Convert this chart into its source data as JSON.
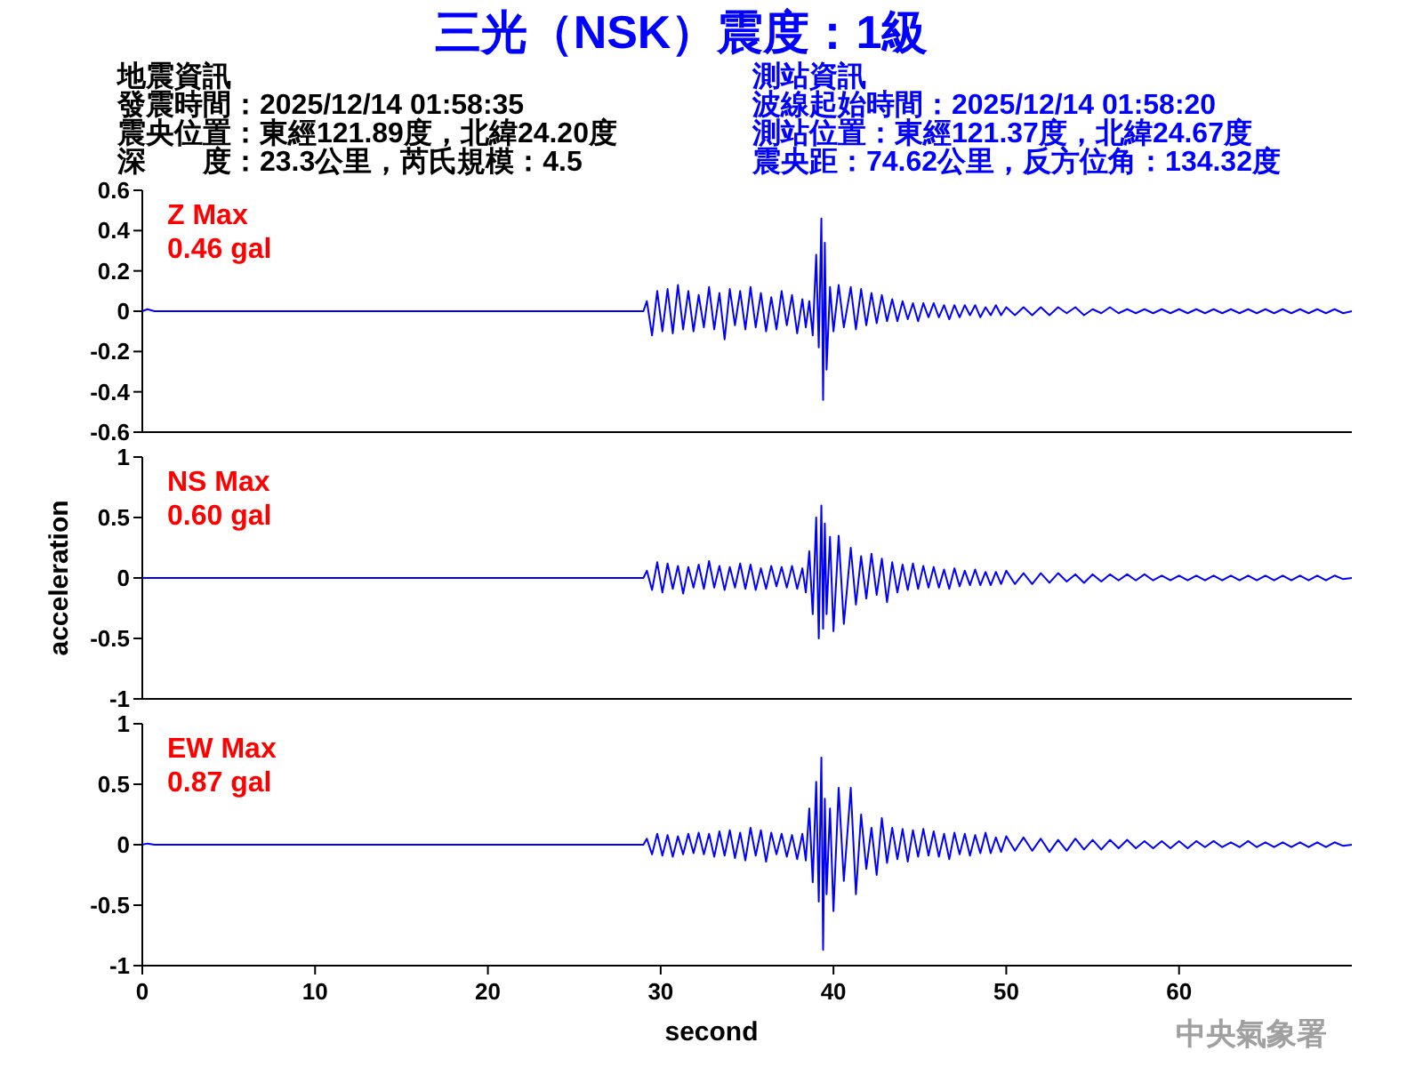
{
  "chart_data": [
    {
      "type": "line",
      "title": "三光（NSK）震度：1級",
      "annotations": [
        "地震資訊",
        "發震時間：2025/12/14 01:58:35",
        "震央位置：東經121.89度，北緯24.20度",
        "深　　度：23.3公里，芮氏規模：4.5",
        "測站資訊",
        "波線起始時間：2025/12/14 01:58:20",
        "測站位置：東經121.37度，北緯24.67度",
        "震央距：74.62公里，反方位角：134.32度",
        "Z Max",
        "0.46 gal"
      ],
      "x": [
        0,
        0.3,
        0.7,
        29.0,
        29.2,
        29.5,
        29.8,
        30.1,
        30.4,
        30.7,
        31.0,
        31.3,
        31.6,
        31.9,
        32.2,
        32.5,
        32.8,
        33.1,
        33.4,
        33.7,
        34.0,
        34.3,
        34.6,
        34.9,
        35.2,
        35.5,
        35.8,
        36.1,
        36.4,
        36.7,
        37.0,
        37.3,
        37.6,
        37.9,
        38.2,
        38.4,
        38.6,
        38.8,
        39.0,
        39.15,
        39.3,
        39.4,
        39.5,
        39.6,
        39.8,
        40.0,
        40.3,
        40.6,
        41.0,
        41.3,
        41.6,
        41.9,
        42.2,
        42.5,
        42.8,
        43.1,
        43.4,
        43.7,
        44.0,
        44.3,
        44.6,
        44.9,
        45.2,
        45.5,
        45.8,
        46.1,
        46.4,
        46.7,
        47.0,
        47.3,
        47.6,
        47.9,
        48.2,
        48.5,
        48.8,
        49.1,
        49.4,
        49.7,
        50.0,
        50.5,
        51.0,
        51.5,
        52.0,
        52.5,
        53.0,
        53.5,
        54.0,
        54.5,
        55.0,
        55.5,
        56.0,
        56.5,
        57.0,
        57.5,
        58.0,
        58.5,
        59.0,
        59.5,
        60.0,
        60.5,
        61.0,
        61.5,
        62.0,
        62.5,
        63.0,
        63.5,
        64.0,
        64.5,
        65.0,
        65.5,
        66.0,
        66.5,
        67.0,
        67.5,
        68.0,
        68.5,
        69.0,
        69.5,
        70
      ],
      "values": [
        0,
        0.01,
        0,
        0,
        0.05,
        -0.12,
        0.1,
        -0.1,
        0.11,
        -0.11,
        0.13,
        -0.09,
        0.1,
        -0.1,
        0.08,
        -0.08,
        0.12,
        -0.09,
        0.09,
        -0.14,
        0.11,
        -0.07,
        0.1,
        -0.09,
        0.12,
        -0.08,
        0.09,
        -0.1,
        0.07,
        -0.09,
        0.1,
        -0.07,
        0.08,
        -0.11,
        0.06,
        -0.08,
        0.05,
        -0.12,
        0.28,
        -0.18,
        0.46,
        -0.44,
        0.34,
        -0.29,
        0.12,
        -0.1,
        0.13,
        -0.08,
        0.12,
        -0.09,
        0.11,
        -0.07,
        0.09,
        -0.06,
        0.08,
        -0.05,
        0.06,
        -0.05,
        0.05,
        -0.04,
        0.04,
        -0.05,
        0.04,
        -0.03,
        0.04,
        -0.03,
        0.03,
        -0.04,
        0.03,
        -0.03,
        0.03,
        -0.02,
        0.03,
        -0.03,
        0.02,
        -0.02,
        0.03,
        -0.02,
        0.02,
        -0.02,
        0.02,
        -0.02,
        0.02,
        -0.02,
        0.02,
        -0.01,
        0.02,
        -0.02,
        0.01,
        -0.01,
        0.02,
        -0.01,
        0.01,
        -0.01,
        0.01,
        -0.01,
        0.01,
        -0.01,
        0.01,
        -0.01,
        0.01,
        -0.01,
        0.01,
        -0.01,
        0.01,
        -0.01,
        0.01,
        -0.01,
        0.01,
        -0.01,
        0.01,
        -0.01,
        0.01,
        -0.01,
        0.01,
        -0.01,
        0.01,
        -0.01,
        0
      ],
      "color": "#0000ff",
      "xlim": [
        0,
        70
      ],
      "ylim": [
        -0.6,
        0.6
      ],
      "yticks": [
        -0.6,
        -0.4,
        -0.2,
        0,
        0.2,
        0.4,
        0.6
      ],
      "tick_labels": "y"
    },
    {
      "type": "line",
      "ylabel": "acceleration",
      "annotations": [
        "NS Max",
        "0.60 gal"
      ],
      "x": [
        0,
        0.3,
        0.7,
        29.0,
        29.2,
        29.5,
        29.8,
        30.1,
        30.4,
        30.7,
        31.0,
        31.3,
        31.6,
        31.9,
        32.2,
        32.5,
        32.8,
        33.1,
        33.4,
        33.7,
        34.0,
        34.3,
        34.6,
        34.9,
        35.2,
        35.5,
        35.8,
        36.1,
        36.4,
        36.7,
        37.0,
        37.3,
        37.6,
        37.9,
        38.2,
        38.4,
        38.6,
        38.8,
        39.0,
        39.15,
        39.3,
        39.4,
        39.5,
        39.6,
        39.8,
        40.0,
        40.3,
        40.6,
        41.0,
        41.3,
        41.6,
        41.9,
        42.2,
        42.5,
        42.8,
        43.1,
        43.4,
        43.7,
        44.0,
        44.3,
        44.6,
        44.9,
        45.2,
        45.5,
        45.8,
        46.1,
        46.4,
        46.7,
        47.0,
        47.3,
        47.6,
        47.9,
        48.2,
        48.5,
        48.8,
        49.1,
        49.4,
        49.7,
        50.0,
        50.5,
        51.0,
        51.5,
        52.0,
        52.5,
        53.0,
        53.5,
        54.0,
        54.5,
        55.0,
        55.5,
        56.0,
        56.5,
        57.0,
        57.5,
        58.0,
        58.5,
        59.0,
        59.5,
        60.0,
        60.5,
        61.0,
        61.5,
        62.0,
        62.5,
        63.0,
        63.5,
        64.0,
        64.5,
        65.0,
        65.5,
        66.0,
        66.5,
        67.0,
        67.5,
        68.0,
        68.5,
        69.0,
        69.5,
        70
      ],
      "values": [
        0,
        0,
        0,
        0,
        0.06,
        -0.1,
        0.13,
        -0.12,
        0.12,
        -0.09,
        0.1,
        -0.13,
        0.09,
        -0.08,
        0.11,
        -0.09,
        0.14,
        -0.08,
        0.1,
        -0.1,
        0.09,
        -0.08,
        0.12,
        -0.09,
        0.11,
        -0.1,
        0.08,
        -0.09,
        0.1,
        -0.07,
        0.09,
        -0.08,
        0.1,
        -0.09,
        0.08,
        -0.12,
        0.22,
        -0.3,
        0.5,
        -0.5,
        0.6,
        -0.42,
        0.45,
        -0.3,
        0.34,
        -0.44,
        0.35,
        -0.38,
        0.25,
        -0.22,
        0.18,
        -0.17,
        0.2,
        -0.14,
        0.16,
        -0.2,
        0.13,
        -0.12,
        0.11,
        -0.1,
        0.12,
        -0.09,
        0.1,
        -0.08,
        0.09,
        -0.08,
        0.07,
        -0.09,
        0.08,
        -0.07,
        0.06,
        -0.06,
        0.07,
        -0.06,
        0.05,
        -0.06,
        0.05,
        -0.05,
        0.06,
        -0.05,
        0.04,
        -0.05,
        0.04,
        -0.04,
        0.04,
        -0.03,
        0.03,
        -0.04,
        0.03,
        -0.03,
        0.03,
        -0.02,
        0.03,
        -0.02,
        0.03,
        -0.02,
        0.02,
        -0.02,
        0.02,
        -0.02,
        0.02,
        -0.02,
        0.02,
        -0.02,
        0.02,
        -0.02,
        0.02,
        -0.02,
        0.02,
        -0.02,
        0.02,
        -0.02,
        0.02,
        -0.02,
        0.02,
        -0.02,
        0.02,
        -0.01,
        0
      ],
      "color": "#0000ff",
      "xlim": [
        0,
        70
      ],
      "ylim": [
        -1,
        1
      ],
      "yticks": [
        -1,
        -0.5,
        0,
        0.5,
        1
      ],
      "tick_labels": "y"
    },
    {
      "type": "line",
      "xlabel": "second",
      "annotations": [
        "EW Max",
        "0.87 gal",
        "中央氣象署"
      ],
      "x": [
        0,
        0.3,
        0.7,
        29.0,
        29.2,
        29.5,
        29.8,
        30.1,
        30.4,
        30.7,
        31.0,
        31.3,
        31.6,
        31.9,
        32.2,
        32.5,
        32.8,
        33.1,
        33.4,
        33.7,
        34.0,
        34.3,
        34.6,
        34.9,
        35.2,
        35.5,
        35.8,
        36.1,
        36.4,
        36.7,
        37.0,
        37.3,
        37.6,
        37.9,
        38.2,
        38.4,
        38.6,
        38.8,
        39.0,
        39.15,
        39.3,
        39.4,
        39.5,
        39.6,
        39.8,
        40.0,
        40.3,
        40.6,
        41.0,
        41.3,
        41.6,
        41.9,
        42.2,
        42.5,
        42.8,
        43.1,
        43.4,
        43.7,
        44.0,
        44.3,
        44.6,
        44.9,
        45.2,
        45.5,
        45.8,
        46.1,
        46.4,
        46.7,
        47.0,
        47.3,
        47.6,
        47.9,
        48.2,
        48.5,
        48.8,
        49.1,
        49.4,
        49.7,
        50.0,
        50.5,
        51.0,
        51.5,
        52.0,
        52.5,
        53.0,
        53.5,
        54.0,
        54.5,
        55.0,
        55.5,
        56.0,
        56.5,
        57.0,
        57.5,
        58.0,
        58.5,
        59.0,
        59.5,
        60.0,
        60.5,
        61.0,
        61.5,
        62.0,
        62.5,
        63.0,
        63.5,
        64.0,
        64.5,
        65.0,
        65.5,
        66.0,
        66.5,
        67.0,
        67.5,
        68.0,
        68.5,
        69.0,
        69.5,
        70
      ],
      "values": [
        0,
        0.01,
        0,
        0,
        0.05,
        -0.08,
        0.09,
        -0.09,
        0.08,
        -0.1,
        0.07,
        -0.08,
        0.09,
        -0.07,
        0.1,
        -0.08,
        0.09,
        -0.1,
        0.11,
        -0.09,
        0.12,
        -0.11,
        0.1,
        -0.13,
        0.14,
        -0.09,
        0.12,
        -0.14,
        0.1,
        -0.08,
        0.09,
        -0.1,
        0.08,
        -0.12,
        0.09,
        -0.13,
        0.3,
        -0.31,
        0.52,
        -0.47,
        0.72,
        -0.87,
        0.38,
        -0.41,
        0.3,
        -0.55,
        0.47,
        -0.3,
        0.47,
        -0.41,
        0.25,
        -0.2,
        0.14,
        -0.25,
        0.22,
        -0.15,
        0.14,
        -0.12,
        0.13,
        -0.14,
        0.12,
        -0.1,
        0.13,
        -0.09,
        0.11,
        -0.1,
        0.09,
        -0.12,
        0.1,
        -0.08,
        0.09,
        -0.09,
        0.08,
        -0.07,
        0.1,
        -0.07,
        0.06,
        -0.06,
        0.07,
        -0.05,
        0.06,
        -0.05,
        0.05,
        -0.06,
        0.04,
        -0.05,
        0.05,
        -0.04,
        0.04,
        -0.04,
        0.04,
        -0.03,
        0.04,
        -0.03,
        0.03,
        -0.03,
        0.03,
        -0.03,
        0.03,
        -0.03,
        0.03,
        -0.02,
        0.03,
        -0.02,
        0.02,
        -0.02,
        0.03,
        -0.02,
        0.02,
        -0.02,
        0.02,
        -0.02,
        0.02,
        -0.02,
        0.02,
        -0.02,
        0.02,
        -0.01,
        0
      ],
      "color": "#0000ff",
      "xlim": [
        0,
        70
      ],
      "ylim": [
        -1,
        1
      ],
      "xticks": [
        0,
        10,
        20,
        30,
        40,
        50,
        60
      ],
      "yticks": [
        -1,
        -0.5,
        0,
        0.5,
        1
      ]
    }
  ]
}
